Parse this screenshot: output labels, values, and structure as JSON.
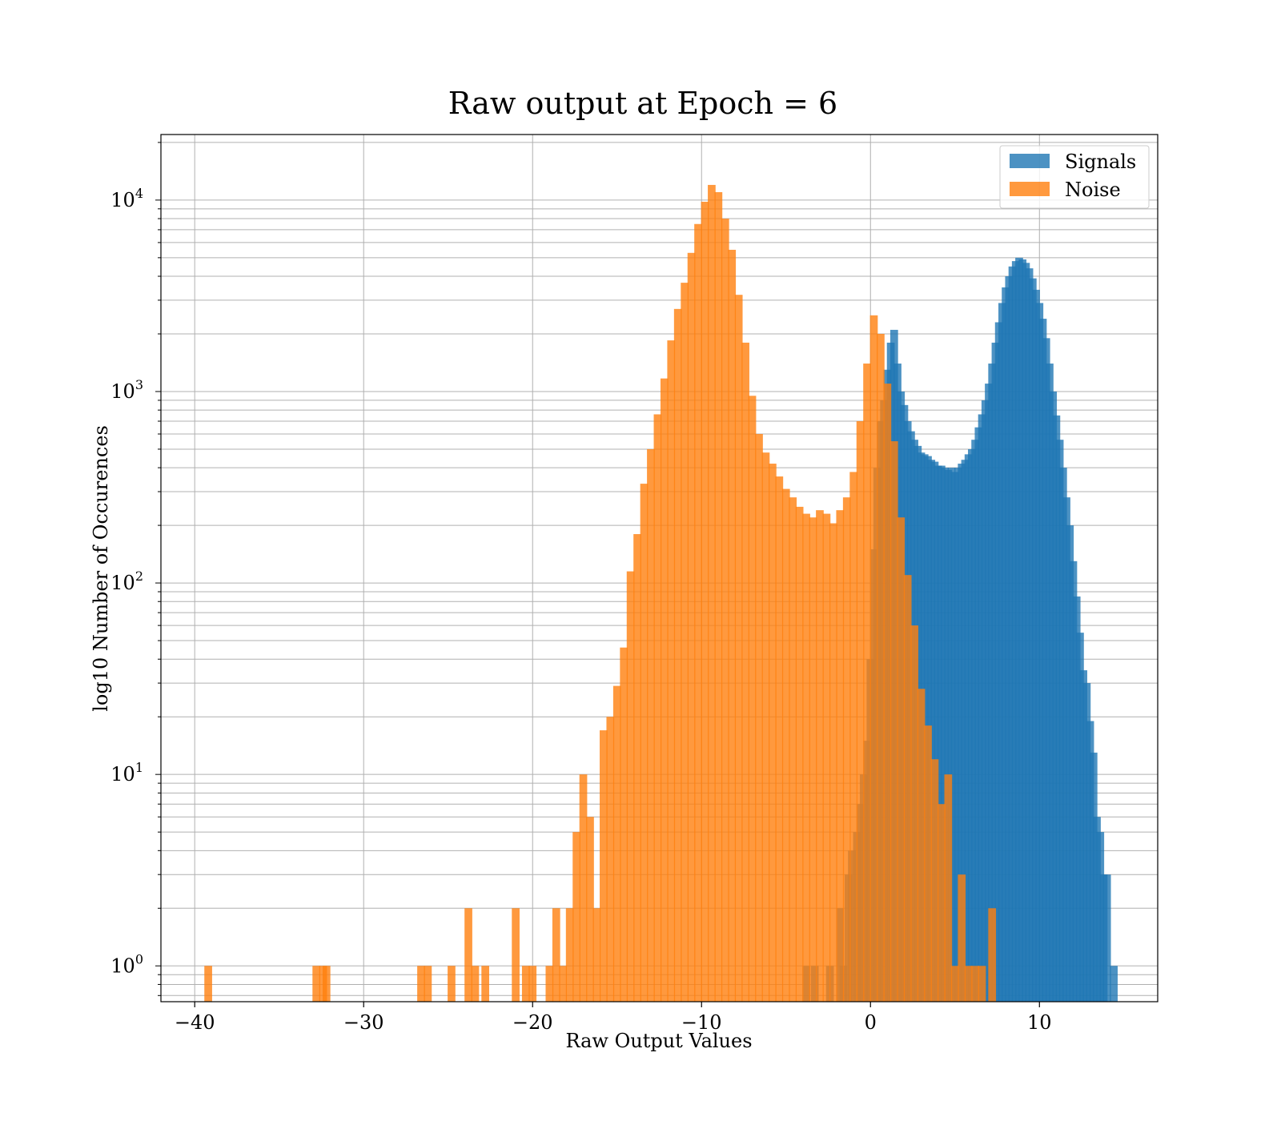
{
  "chart_data": {
    "type": "bar",
    "subtype": "histogram",
    "title": "Raw output at Epoch = 6",
    "xlabel": "Raw Output Values",
    "ylabel": "log10 Number of Occurences",
    "xlim": [
      -42,
      17
    ],
    "ylim": [
      0.65,
      22000
    ],
    "yscale": "log",
    "x_ticks": [
      -40,
      -30,
      -20,
      -10,
      0,
      10
    ],
    "x_tick_labels": [
      "−40",
      "−30",
      "−20",
      "−10",
      "0",
      "10"
    ],
    "y_ticks": [
      1,
      10,
      100,
      1000,
      10000
    ],
    "y_tick_labels": [
      {
        "base": "10",
        "exp": "0"
      },
      {
        "base": "10",
        "exp": "1"
      },
      {
        "base": "10",
        "exp": "2"
      },
      {
        "base": "10",
        "exp": "3"
      },
      {
        "base": "10",
        "exp": "4"
      }
    ],
    "grid": true,
    "grid_minor_y": true,
    "legend_position": "top-right",
    "series": [
      {
        "name": "Signals",
        "color": "#1f77b4",
        "opacity": 0.8,
        "bin_width": 0.46,
        "bins": [
          [
            -3.8,
            1
          ],
          [
            -3.3,
            1
          ],
          [
            -2.4,
            1
          ],
          [
            -1.8,
            2
          ],
          [
            -1.6,
            1
          ],
          [
            -1.3,
            3
          ],
          [
            -1.1,
            4
          ],
          [
            -0.8,
            5
          ],
          [
            -0.6,
            7
          ],
          [
            -0.4,
            10
          ],
          [
            -0.2,
            15
          ],
          [
            0.0,
            40
          ],
          [
            0.2,
            150
          ],
          [
            0.4,
            400
          ],
          [
            0.6,
            700
          ],
          [
            0.8,
            900
          ],
          [
            1.0,
            1300
          ],
          [
            1.2,
            1800
          ],
          [
            1.4,
            2100
          ],
          [
            1.6,
            1400
          ],
          [
            1.8,
            1000
          ],
          [
            2.0,
            850
          ],
          [
            2.2,
            700
          ],
          [
            2.4,
            620
          ],
          [
            2.6,
            560
          ],
          [
            2.8,
            520
          ],
          [
            3.0,
            480
          ],
          [
            3.2,
            470
          ],
          [
            3.4,
            460
          ],
          [
            3.6,
            440
          ],
          [
            3.8,
            430
          ],
          [
            4.0,
            410
          ],
          [
            4.2,
            410
          ],
          [
            4.4,
            400
          ],
          [
            4.6,
            390
          ],
          [
            4.8,
            400
          ],
          [
            5.0,
            380
          ],
          [
            5.2,
            400
          ],
          [
            5.4,
            420
          ],
          [
            5.6,
            440
          ],
          [
            5.8,
            470
          ],
          [
            6.0,
            500
          ],
          [
            6.2,
            560
          ],
          [
            6.4,
            650
          ],
          [
            6.6,
            760
          ],
          [
            6.8,
            900
          ],
          [
            7.0,
            1100
          ],
          [
            7.2,
            1400
          ],
          [
            7.4,
            1800
          ],
          [
            7.6,
            2300
          ],
          [
            7.8,
            2900
          ],
          [
            8.0,
            3500
          ],
          [
            8.2,
            4000
          ],
          [
            8.4,
            4500
          ],
          [
            8.6,
            4800
          ],
          [
            8.8,
            5000
          ],
          [
            9.0,
            4900
          ],
          [
            9.2,
            4700
          ],
          [
            9.4,
            4400
          ],
          [
            9.6,
            3900
          ],
          [
            9.8,
            3400
          ],
          [
            10.0,
            2900
          ],
          [
            10.2,
            2400
          ],
          [
            10.4,
            1900
          ],
          [
            10.6,
            1400
          ],
          [
            10.8,
            1000
          ],
          [
            11.0,
            750
          ],
          [
            11.2,
            560
          ],
          [
            11.4,
            400
          ],
          [
            11.6,
            280
          ],
          [
            11.8,
            200
          ],
          [
            12.0,
            130
          ],
          [
            12.2,
            85
          ],
          [
            12.4,
            55
          ],
          [
            12.6,
            35
          ],
          [
            12.8,
            30
          ],
          [
            13.0,
            19
          ],
          [
            13.2,
            13
          ],
          [
            13.4,
            6
          ],
          [
            13.6,
            5
          ],
          [
            13.8,
            3
          ],
          [
            14.0,
            3
          ],
          [
            14.4,
            1
          ]
        ]
      },
      {
        "name": "Noise",
        "color": "#ff7f0e",
        "opacity": 0.8,
        "bin_width": 0.46,
        "bins": [
          [
            -39.2,
            1
          ],
          [
            -32.8,
            1
          ],
          [
            -32.4,
            1
          ],
          [
            -32.2,
            1
          ],
          [
            -26.6,
            1
          ],
          [
            -26.2,
            1
          ],
          [
            -24.8,
            1
          ],
          [
            -23.8,
            2
          ],
          [
            -23.4,
            1
          ],
          [
            -22.8,
            1
          ],
          [
            -21.0,
            2
          ],
          [
            -20.4,
            1
          ],
          [
            -20.0,
            1
          ],
          [
            -19.0,
            1
          ],
          [
            -18.6,
            2
          ],
          [
            -18.2,
            1
          ],
          [
            -17.8,
            2
          ],
          [
            -17.4,
            5
          ],
          [
            -17.0,
            10
          ],
          [
            -16.6,
            6
          ],
          [
            -16.2,
            2
          ],
          [
            -15.8,
            17
          ],
          [
            -15.4,
            20
          ],
          [
            -15.0,
            29
          ],
          [
            -14.6,
            46
          ],
          [
            -14.2,
            115
          ],
          [
            -13.8,
            180
          ],
          [
            -13.4,
            330
          ],
          [
            -13.0,
            500
          ],
          [
            -12.6,
            760
          ],
          [
            -12.2,
            1170
          ],
          [
            -11.8,
            1850
          ],
          [
            -11.4,
            2700
          ],
          [
            -11.0,
            3700
          ],
          [
            -10.6,
            5300
          ],
          [
            -10.2,
            7500
          ],
          [
            -9.8,
            9800
          ],
          [
            -9.4,
            12000
          ],
          [
            -9.0,
            11000
          ],
          [
            -8.6,
            8000
          ],
          [
            -8.2,
            5500
          ],
          [
            -7.8,
            3200
          ],
          [
            -7.4,
            1800
          ],
          [
            -7.0,
            950
          ],
          [
            -6.6,
            600
          ],
          [
            -6.2,
            480
          ],
          [
            -5.8,
            420
          ],
          [
            -5.4,
            360
          ],
          [
            -5.0,
            310
          ],
          [
            -4.6,
            280
          ],
          [
            -4.2,
            250
          ],
          [
            -3.8,
            230
          ],
          [
            -3.4,
            220
          ],
          [
            -3.0,
            240
          ],
          [
            -2.6,
            230
          ],
          [
            -2.2,
            205
          ],
          [
            -1.8,
            240
          ],
          [
            -1.4,
            280
          ],
          [
            -1.0,
            380
          ],
          [
            -0.6,
            700
          ],
          [
            -0.2,
            1400
          ],
          [
            0.2,
            2500
          ],
          [
            0.6,
            2000
          ],
          [
            1.0,
            1100
          ],
          [
            1.4,
            550
          ],
          [
            1.8,
            220
          ],
          [
            2.2,
            110
          ],
          [
            2.6,
            60
          ],
          [
            3.0,
            28
          ],
          [
            3.4,
            18
          ],
          [
            3.8,
            12
          ],
          [
            4.2,
            7
          ],
          [
            4.6,
            10
          ],
          [
            5.0,
            1
          ],
          [
            5.4,
            3
          ],
          [
            5.8,
            1
          ],
          [
            6.2,
            1
          ],
          [
            6.6,
            1
          ],
          [
            7.2,
            2
          ]
        ]
      }
    ]
  }
}
